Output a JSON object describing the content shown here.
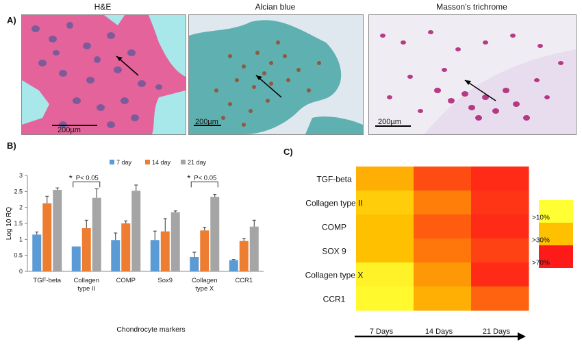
{
  "panel_a": {
    "letter": "A)",
    "stains": [
      {
        "title": "H&E",
        "scale": "200µm"
      },
      {
        "title": "Alcian blue",
        "scale": "200µm"
      },
      {
        "title": "Masson's trichrome",
        "scale": "200µm"
      }
    ]
  },
  "panel_b": {
    "letter": "B)",
    "sig_label": "P< 0.05",
    "sig_star": "*"
  },
  "panel_c": {
    "letter": "C)",
    "legend": [
      ">10%",
      ">30%",
      ">70%"
    ]
  },
  "colors": {
    "day7": "#5b9bd5",
    "day14": "#ed7d31",
    "day21": "#a5a5a5",
    "heat_low": "#ffff33",
    "heat_mid": "#ffc000",
    "heat_high": "#ff1a1a"
  },
  "chart_data": [
    {
      "type": "bar",
      "ylabel": "Log 10 RQ",
      "xlabel": "Chondrocyte markers",
      "ylim": [
        0,
        3
      ],
      "yticks": [
        "0",
        "0.5",
        "1",
        "1.5",
        "2",
        "2.5",
        "3"
      ],
      "legend_position": "top",
      "categories": [
        "TGF-beta",
        "Collagen type II",
        "COMP",
        "Sox9",
        "Collagen type X",
        "CCR1"
      ],
      "category_lines": [
        [
          "TGF-beta"
        ],
        [
          "Collagen",
          "type II"
        ],
        [
          "COMP"
        ],
        [
          "Sox9"
        ],
        [
          "Collagen",
          "type X"
        ],
        [
          "CCR1"
        ]
      ],
      "series": [
        {
          "name": "7 day",
          "values": [
            1.15,
            0.78,
            0.98,
            0.98,
            0.45,
            0.35
          ],
          "errors": [
            0.08,
            0.0,
            0.22,
            0.28,
            0.15,
            0.02
          ]
        },
        {
          "name": "14 day",
          "values": [
            2.13,
            1.35,
            1.5,
            1.25,
            1.28,
            0.95
          ],
          "errors": [
            0.22,
            0.25,
            0.08,
            0.4,
            0.1,
            0.08
          ]
        },
        {
          "name": "21 day",
          "values": [
            2.55,
            2.3,
            2.52,
            1.85,
            2.33,
            1.4
          ],
          "errors": [
            0.06,
            0.28,
            0.18,
            0.04,
            0.08,
            0.2
          ]
        }
      ],
      "annotations": [
        {
          "text": "P< 0.05",
          "categories": [
            "Collagen type II"
          ]
        },
        {
          "text": "P< 0.05",
          "categories": [
            "Collagen type X"
          ]
        }
      ]
    },
    {
      "type": "heatmap",
      "rows": [
        "TGF-beta",
        "Collagen type II",
        "COMP",
        "SOX 9",
        "Collagen type  X",
        "CCR1"
      ],
      "columns": [
        "7 Days",
        "14 Days",
        "21 Days"
      ],
      "legend": [
        ">10%",
        ">30%",
        ">70%"
      ],
      "values": [
        [
          0.55,
          0.85,
          0.95
        ],
        [
          0.4,
          0.7,
          0.92
        ],
        [
          0.5,
          0.8,
          0.95
        ],
        [
          0.5,
          0.72,
          0.88
        ],
        [
          0.1,
          0.62,
          0.95
        ],
        [
          0.05,
          0.55,
          0.78
        ]
      ]
    }
  ]
}
